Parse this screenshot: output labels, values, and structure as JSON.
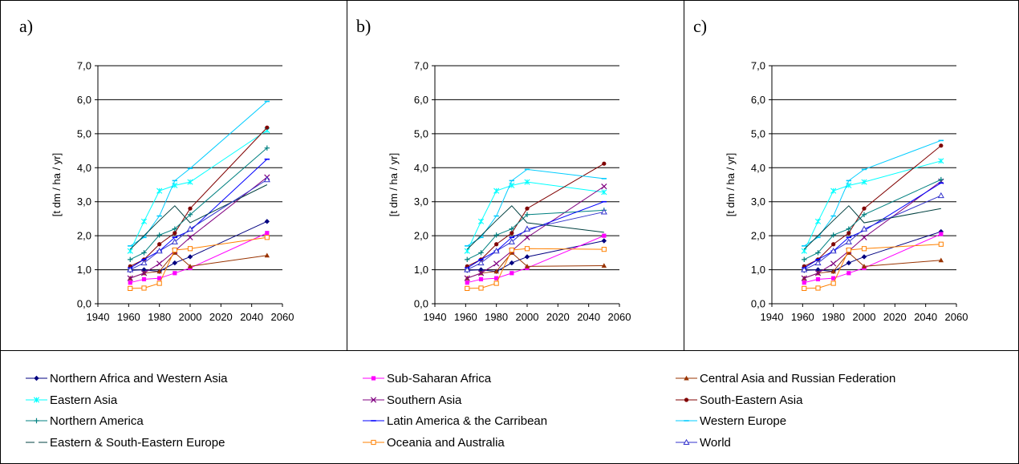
{
  "legend_columns": 3,
  "markers": {
    "nafr": "diamond",
    "ssa": "square",
    "car": "triangle",
    "eas": "asterisk",
    "sas": "x",
    "sea": "circle",
    "nam": "plus",
    "lac": "dash",
    "weu": "dash",
    "ese": "none",
    "oce": "square-open",
    "wld": "triangle-open"
  },
  "chart_data": [
    {
      "type": "line",
      "panel_label": "a)",
      "ylabel": "[t dm / ha / yr]",
      "xlim": [
        1940,
        2060
      ],
      "ylim": [
        0,
        7
      ],
      "xticks": [
        "1940",
        "1960",
        "1980",
        "2000",
        "2020",
        "2040",
        "2060"
      ],
      "yticks": [
        "0,0",
        "1,0",
        "2,0",
        "3,0",
        "4,0",
        "5,0",
        "6,0",
        "7,0"
      ],
      "x": [
        1961,
        1970,
        1980,
        1990,
        2000,
        2050
      ],
      "grid": "horizontal",
      "legend_position": "bottom",
      "series": [
        {
          "key": "nafr",
          "name": "Northern Africa and Western Asia",
          "color": "#000080",
          "values": [
            0.98,
            1.0,
            0.95,
            1.2,
            1.38,
            2.42
          ]
        },
        {
          "key": "ssa",
          "name": "Sub-Saharan Africa",
          "color": "#ff00ff",
          "values": [
            0.62,
            0.72,
            0.75,
            0.9,
            1.05,
            2.08
          ]
        },
        {
          "key": "car",
          "name": "Central Asia and Russian Federation",
          "color": "#993300",
          "values": [
            0.75,
            0.9,
            0.95,
            1.5,
            1.1,
            1.42
          ]
        },
        {
          "key": "eas",
          "name": "Eastern Asia",
          "color": "#00ffff",
          "values": [
            1.55,
            2.42,
            3.32,
            3.48,
            3.58,
            5.1
          ]
        },
        {
          "key": "sas",
          "name": "Southern Asia",
          "color": "#800080",
          "values": [
            0.75,
            0.9,
            1.18,
            1.55,
            1.95,
            3.72
          ]
        },
        {
          "key": "sea",
          "name": "South-Eastern Asia",
          "color": "#800000",
          "values": [
            1.1,
            1.3,
            1.75,
            2.08,
            2.8,
            5.18
          ]
        },
        {
          "key": "nam",
          "name": "Northern America",
          "color": "#008080",
          "values": [
            1.3,
            1.5,
            2.02,
            2.2,
            2.62,
            4.58
          ]
        },
        {
          "key": "lac",
          "name": "Latin America & the Carribean",
          "color": "#0000ff",
          "values": [
            1.05,
            1.3,
            1.55,
            1.95,
            2.15,
            4.25
          ]
        },
        {
          "key": "weu",
          "name": "Western Europe",
          "color": "#00ccff",
          "values": [
            1.7,
            1.95,
            2.58,
            3.62,
            3.98,
            5.95
          ]
        },
        {
          "key": "ese",
          "name": "Eastern & South-Eastern Europe",
          "color": "#004040",
          "values": [
            1.6,
            2.0,
            2.45,
            2.88,
            2.38,
            3.5
          ]
        },
        {
          "key": "oce",
          "name": "Oceania and Australia",
          "color": "#ff8000",
          "values": [
            0.45,
            0.46,
            0.6,
            1.58,
            1.62,
            1.95
          ]
        },
        {
          "key": "wld",
          "name": "World",
          "color": "#3333cc",
          "values": [
            1.0,
            1.2,
            1.55,
            1.82,
            2.2,
            3.65
          ]
        }
      ]
    },
    {
      "type": "line",
      "panel_label": "b)",
      "ylabel": "[t dm / ha / yr]",
      "xlim": [
        1940,
        2060
      ],
      "ylim": [
        0,
        7
      ],
      "xticks": [
        "1940",
        "1960",
        "1980",
        "2000",
        "2020",
        "2040",
        "2060"
      ],
      "yticks": [
        "0,0",
        "1,0",
        "2,0",
        "3,0",
        "4,0",
        "5,0",
        "6,0",
        "7,0"
      ],
      "x": [
        1961,
        1970,
        1980,
        1990,
        2000,
        2050
      ],
      "grid": "horizontal",
      "legend_position": "bottom",
      "series": [
        {
          "key": "nafr",
          "name": "Northern Africa and Western Asia",
          "color": "#000080",
          "values": [
            0.98,
            1.0,
            0.95,
            1.2,
            1.38,
            1.85
          ]
        },
        {
          "key": "ssa",
          "name": "Sub-Saharan Africa",
          "color": "#ff00ff",
          "values": [
            0.62,
            0.72,
            0.75,
            0.9,
            1.05,
            2.0
          ]
        },
        {
          "key": "car",
          "name": "Central Asia and Russian Federation",
          "color": "#993300",
          "values": [
            0.75,
            0.9,
            0.95,
            1.5,
            1.1,
            1.12
          ]
        },
        {
          "key": "eas",
          "name": "Eastern Asia",
          "color": "#00ffff",
          "values": [
            1.55,
            2.42,
            3.32,
            3.48,
            3.58,
            3.28
          ]
        },
        {
          "key": "sas",
          "name": "Southern Asia",
          "color": "#800080",
          "values": [
            0.75,
            0.9,
            1.18,
            1.55,
            1.95,
            3.45
          ]
        },
        {
          "key": "sea",
          "name": "South-Eastern Asia",
          "color": "#800000",
          "values": [
            1.1,
            1.3,
            1.75,
            2.08,
            2.8,
            4.12
          ]
        },
        {
          "key": "nam",
          "name": "Northern America",
          "color": "#008080",
          "values": [
            1.3,
            1.5,
            2.02,
            2.2,
            2.62,
            2.75
          ]
        },
        {
          "key": "lac",
          "name": "Latin America & the Carribean",
          "color": "#0000ff",
          "values": [
            1.05,
            1.3,
            1.55,
            1.95,
            2.15,
            3.0
          ]
        },
        {
          "key": "weu",
          "name": "Western Europe",
          "color": "#00ccff",
          "values": [
            1.7,
            1.95,
            2.58,
            3.62,
            3.95,
            3.68
          ]
        },
        {
          "key": "ese",
          "name": "Eastern & South-Eastern Europe",
          "color": "#004040",
          "values": [
            1.6,
            2.0,
            2.45,
            2.88,
            2.38,
            2.1
          ]
        },
        {
          "key": "oce",
          "name": "Oceania and Australia",
          "color": "#ff8000",
          "values": [
            0.45,
            0.46,
            0.6,
            1.58,
            1.62,
            1.6
          ]
        },
        {
          "key": "wld",
          "name": "World",
          "color": "#3333cc",
          "values": [
            1.0,
            1.2,
            1.55,
            1.82,
            2.2,
            2.7
          ]
        }
      ]
    },
    {
      "type": "line",
      "panel_label": "c)",
      "ylabel": "[t dm / ha / yr]",
      "xlim": [
        1940,
        2060
      ],
      "ylim": [
        0,
        7
      ],
      "xticks": [
        "1940",
        "1960",
        "1980",
        "2000",
        "2020",
        "2040",
        "2060"
      ],
      "yticks": [
        "0,0",
        "1,0",
        "2,0",
        "3,0",
        "4,0",
        "5,0",
        "6,0",
        "7,0"
      ],
      "x": [
        1961,
        1970,
        1980,
        1990,
        2000,
        2050
      ],
      "grid": "horizontal",
      "legend_position": "bottom",
      "series": [
        {
          "key": "nafr",
          "name": "Northern Africa and Western Asia",
          "color": "#000080",
          "values": [
            0.98,
            1.0,
            0.95,
            1.2,
            1.38,
            2.12
          ]
        },
        {
          "key": "ssa",
          "name": "Sub-Saharan Africa",
          "color": "#ff00ff",
          "values": [
            0.62,
            0.72,
            0.75,
            0.9,
            1.05,
            2.05
          ]
        },
        {
          "key": "car",
          "name": "Central Asia and Russian Federation",
          "color": "#993300",
          "values": [
            0.75,
            0.9,
            0.95,
            1.5,
            1.1,
            1.28
          ]
        },
        {
          "key": "eas",
          "name": "Eastern Asia",
          "color": "#00ffff",
          "values": [
            1.55,
            2.42,
            3.32,
            3.48,
            3.58,
            4.2
          ]
        },
        {
          "key": "sas",
          "name": "Southern Asia",
          "color": "#800080",
          "values": [
            0.75,
            0.9,
            1.18,
            1.55,
            1.95,
            3.6
          ]
        },
        {
          "key": "sea",
          "name": "South-Eastern Asia",
          "color": "#800000",
          "values": [
            1.1,
            1.3,
            1.75,
            2.08,
            2.8,
            4.65
          ]
        },
        {
          "key": "nam",
          "name": "Northern America",
          "color": "#008080",
          "values": [
            1.3,
            1.5,
            2.02,
            2.2,
            2.62,
            3.65
          ]
        },
        {
          "key": "lac",
          "name": "Latin America & the Carribean",
          "color": "#0000ff",
          "values": [
            1.05,
            1.3,
            1.55,
            1.95,
            2.15,
            3.55
          ]
        },
        {
          "key": "weu",
          "name": "Western Europe",
          "color": "#00ccff",
          "values": [
            1.7,
            1.95,
            2.58,
            3.62,
            3.95,
            4.8
          ]
        },
        {
          "key": "ese",
          "name": "Eastern & South-Eastern Europe",
          "color": "#004040",
          "values": [
            1.6,
            2.0,
            2.45,
            2.88,
            2.38,
            2.8
          ]
        },
        {
          "key": "oce",
          "name": "Oceania and Australia",
          "color": "#ff8000",
          "values": [
            0.45,
            0.46,
            0.6,
            1.58,
            1.62,
            1.75
          ]
        },
        {
          "key": "wld",
          "name": "World",
          "color": "#3333cc",
          "values": [
            1.0,
            1.2,
            1.55,
            1.82,
            2.2,
            3.18
          ]
        }
      ]
    }
  ]
}
